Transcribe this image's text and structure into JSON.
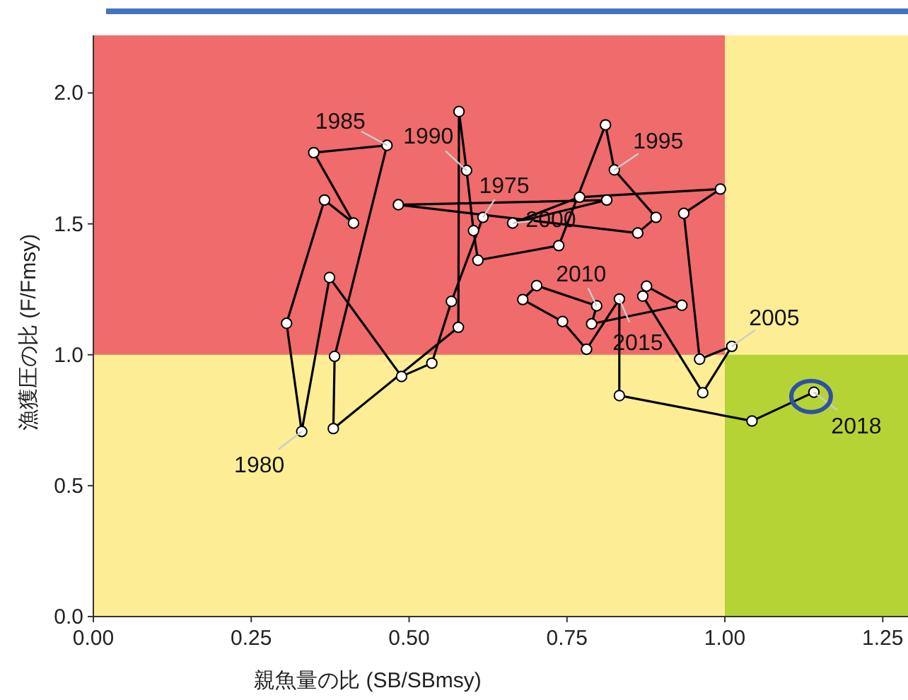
{
  "chart_data": {
    "type": "line",
    "xlabel": "親魚量の比 (SB/SBmsy)",
    "ylabel": "漁獲圧の比 (F/Fmsy)",
    "xlim": [
      0,
      1.29
    ],
    "ylim": [
      0,
      2.22
    ],
    "xticks": [
      {
        "value": 0,
        "label": "0.00"
      },
      0.25,
      {
        "value": 0.5,
        "label": "0.50"
      },
      0.75,
      {
        "value": 1,
        "label": "1.00"
      },
      1.25
    ],
    "yticks": [
      {
        "value": 0,
        "label": "0.0"
      },
      0.5,
      {
        "value": 1,
        "label": "1.0"
      },
      1.5,
      {
        "value": 2,
        "label": "2.0"
      }
    ],
    "marker": "circle",
    "line_style": "solid",
    "bands": [
      {
        "axis": "y",
        "from": 1,
        "to": 2.22,
        "color": "#f06b6b"
      },
      {
        "axis": "x",
        "from": 1,
        "to": 1.29,
        "color": "#b5d334"
      }
    ],
    "series": [
      {
        "color": "#000000",
        "x": [
          0.617,
          0.567,
          0.536,
          0.488,
          0.374,
          0.33,
          0.306,
          0.366,
          0.412,
          0.349,
          0.465,
          0.382,
          0.38,
          0.578,
          0.579,
          0.591,
          0.602,
          0.609,
          0.737,
          0.811,
          0.825,
          0.891,
          0.862,
          0.483,
          0.813,
          0.664,
          0.77,
          0.993,
          0.935,
          0.96,
          1.011,
          0.965,
          0.87,
          0.876,
          0.932,
          0.789,
          0.797,
          0.702,
          0.68,
          0.743,
          0.781,
          0.833,
          0.833,
          1.043,
          1.141
        ],
        "values": [
          1.525,
          1.204,
          0.968,
          0.917,
          1.295,
          0.707,
          1.12,
          1.591,
          1.503,
          1.772,
          1.8,
          0.994,
          0.718,
          1.105,
          1.929,
          1.704,
          1.474,
          1.361,
          1.417,
          1.878,
          1.706,
          1.525,
          1.465,
          1.573,
          1.591,
          1.503,
          1.602,
          1.633,
          1.54,
          0.983,
          1.032,
          0.855,
          1.224,
          1.262,
          1.189,
          1.118,
          1.187,
          1.264,
          1.211,
          1.127,
          1.021,
          1.213,
          0.844,
          0.747,
          0.857
        ]
      }
    ],
    "annotations": [
      {
        "text": "1975",
        "x": 0.617,
        "y": 1.525
      },
      {
        "text": "1980",
        "x": 0.33,
        "y": 0.707
      },
      {
        "text": "1985",
        "x": 0.465,
        "y": 1.8
      },
      {
        "text": "1990",
        "x": 0.591,
        "y": 1.704
      },
      {
        "text": "1995",
        "x": 0.825,
        "y": 1.706
      },
      {
        "text": "2000",
        "x": 0.664,
        "y": 1.503
      },
      {
        "text": "2005",
        "x": 1.011,
        "y": 1.032
      },
      {
        "text": "2010",
        "x": 0.797,
        "y": 1.187
      },
      {
        "text": "2015",
        "x": 0.833,
        "y": 1.213
      },
      {
        "text": "2018",
        "x": 1.141,
        "y": 0.857
      }
    ]
  }
}
